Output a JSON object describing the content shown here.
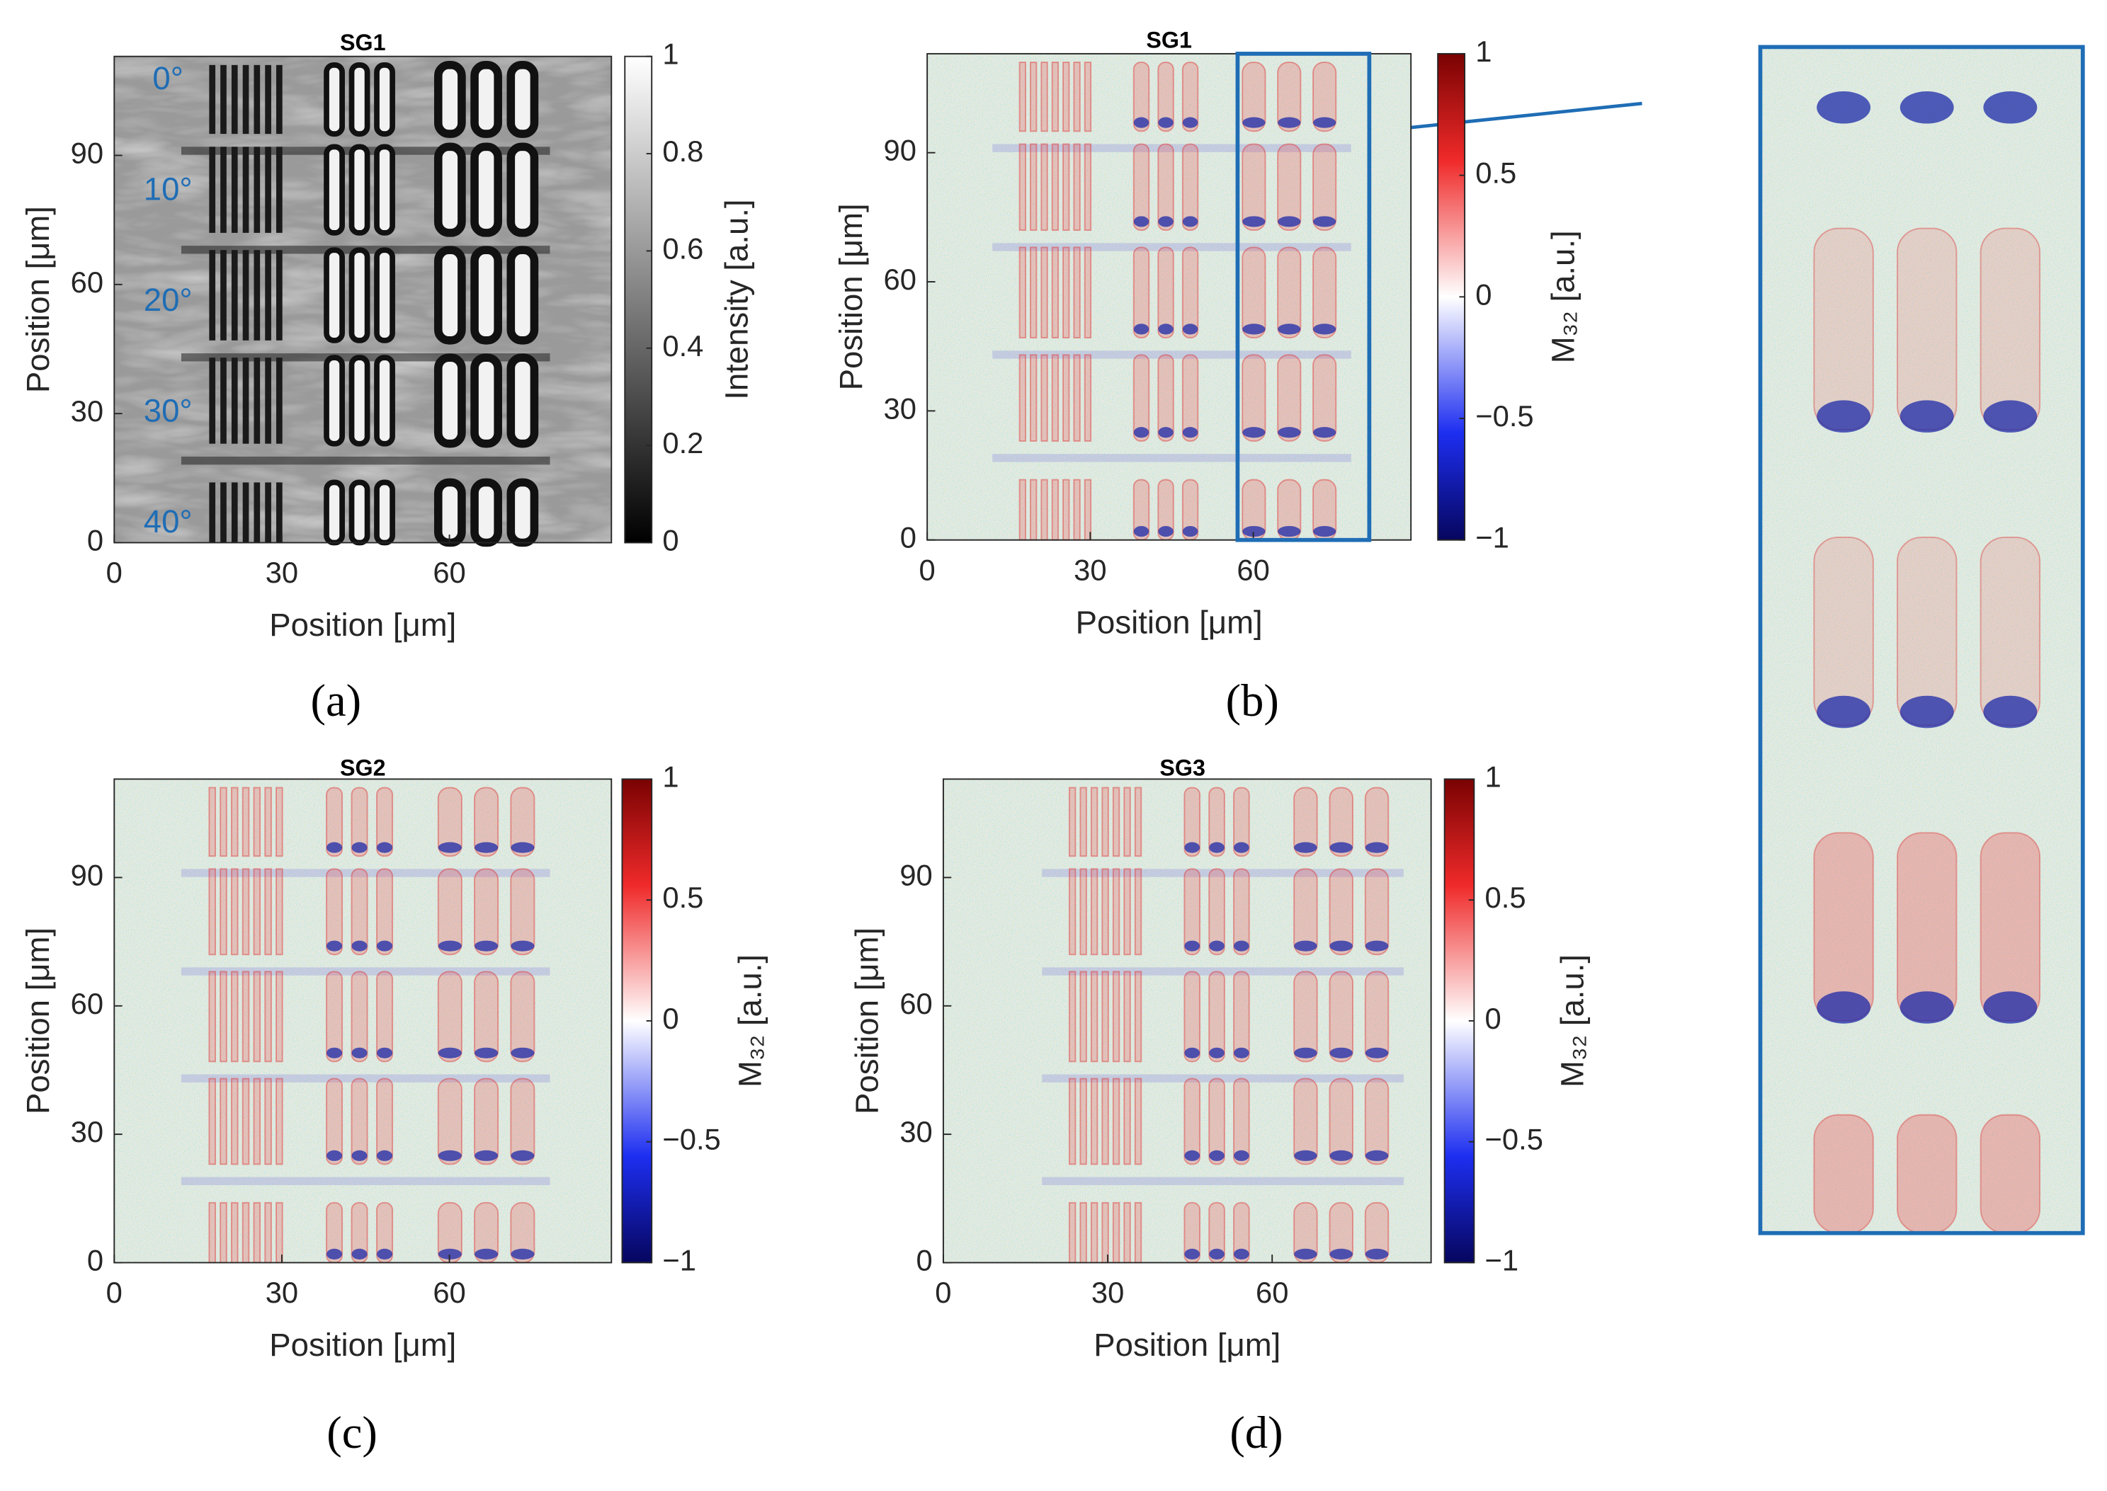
{
  "chart_data": [
    {
      "type": "heatmap",
      "title": "SG1",
      "panel_label": "(a)",
      "xlabel": "Position [μm]",
      "ylabel": "Position [μm]",
      "xlim": [
        0,
        89
      ],
      "ylim": [
        0,
        113
      ],
      "xticks": [
        0,
        30,
        60
      ],
      "yticks": [
        0,
        30,
        60,
        90
      ],
      "colormap": "gray",
      "colorbar": {
        "label": "Intensity [a.u.]",
        "lim": [
          0,
          1
        ],
        "ticks": [
          0,
          0.2,
          0.4,
          0.6,
          0.8,
          1
        ]
      },
      "annotations": [
        "0°",
        "10°",
        "20°",
        "30°",
        "40°"
      ]
    },
    {
      "type": "heatmap",
      "title": "SG1",
      "panel_label": "(b)",
      "xlabel": "Position [μm]",
      "ylabel": "Position [μm]",
      "xlim": [
        0,
        89
      ],
      "ylim": [
        0,
        113
      ],
      "xticks": [
        0,
        30,
        60
      ],
      "yticks": [
        0,
        30,
        60,
        90
      ],
      "colormap": "bwr",
      "colorbar": {
        "label": "M₃₂ [a.u.]",
        "lim": [
          -1,
          1
        ],
        "ticks": [
          {
            "value": -1,
            "label": "−1"
          },
          {
            "value": -0.5,
            "label": "−0.5"
          },
          0,
          0.5,
          1
        ]
      }
    },
    {
      "type": "heatmap",
      "title": "SG2",
      "panel_label": "(c)",
      "xlabel": "Position [μm]",
      "ylabel": "Position [μm]",
      "xlim": [
        0,
        89
      ],
      "ylim": [
        0,
        113
      ],
      "xticks": [
        0,
        30,
        60
      ],
      "yticks": [
        0,
        30,
        60,
        90
      ],
      "colormap": "bwr",
      "colorbar": {
        "label": "M₃₂ [a.u.]",
        "lim": [
          -1,
          1
        ],
        "ticks": [
          {
            "value": -1,
            "label": "−1"
          },
          {
            "value": -0.5,
            "label": "−0.5"
          },
          0,
          0.5,
          1
        ]
      }
    },
    {
      "type": "heatmap",
      "title": "SG3",
      "panel_label": "(d)",
      "xlabel": "Position [μm]",
      "ylabel": "Position [μm]",
      "xlim": [
        0,
        89
      ],
      "ylim": [
        0,
        113
      ],
      "xticks": [
        0,
        30,
        60
      ],
      "yticks": [
        0,
        30,
        60,
        90
      ],
      "colormap": "bwr",
      "colorbar": {
        "label": "M₃₂ [a.u.]",
        "lim": [
          -1,
          1
        ],
        "ticks": [
          {
            "value": -1,
            "label": "−1"
          },
          {
            "value": -0.5,
            "label": "−0.5"
          },
          0,
          0.5,
          1
        ]
      }
    }
  ]
}
